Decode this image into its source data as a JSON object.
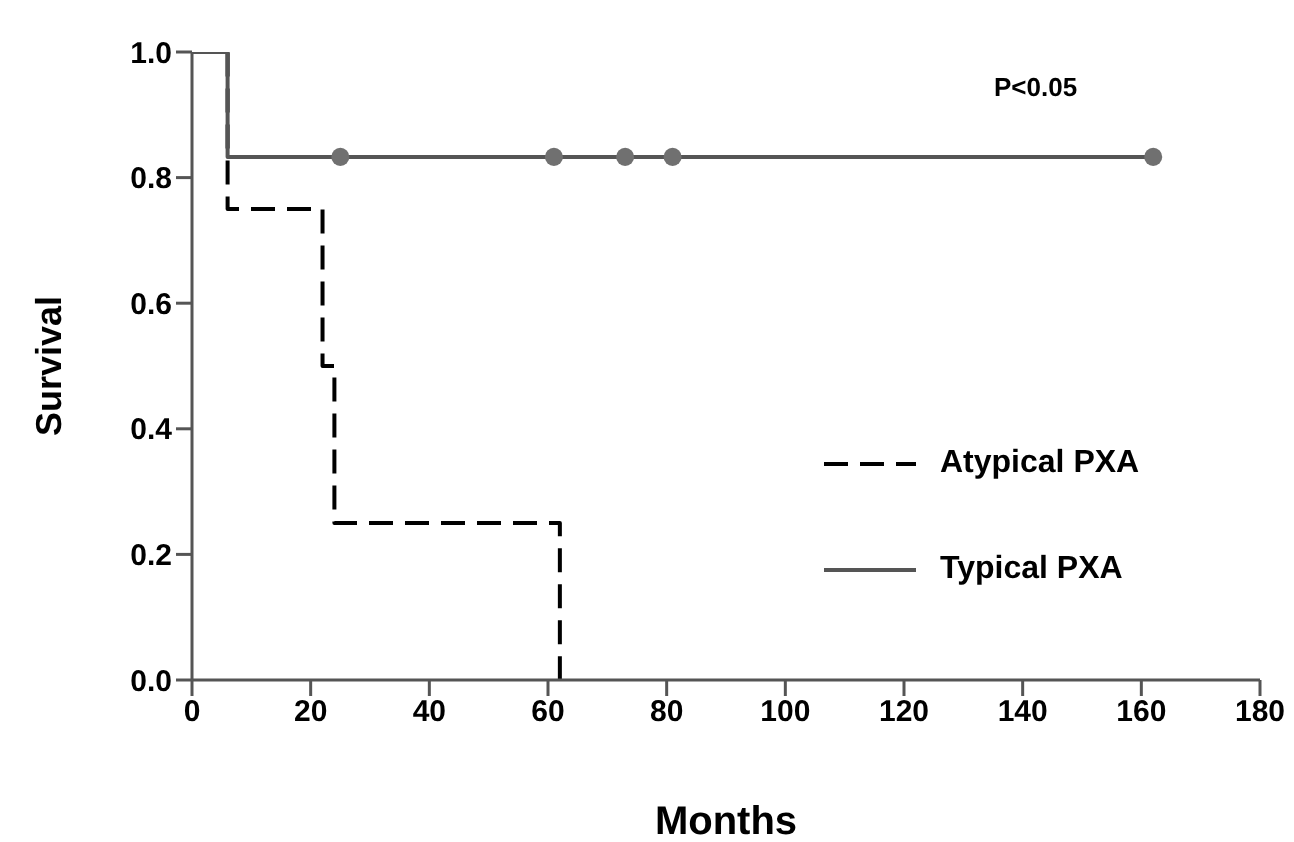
{
  "chart_data": {
    "type": "step",
    "xlabel": "Months",
    "ylabel": "Survival",
    "xlim": [
      0,
      180
    ],
    "xticks": [
      0,
      20,
      40,
      60,
      80,
      100,
      120,
      140,
      160,
      180
    ],
    "ylim": [
      0,
      1
    ],
    "yticks": [
      {
        "value": 0,
        "label": "0.0"
      },
      0.2,
      0.4,
      0.6,
      0.8,
      {
        "value": 1,
        "label": "1.0"
      }
    ],
    "legend": "right",
    "marker": "none",
    "annotations": [
      "P<0.05"
    ],
    "series": [
      {
        "name": "Atypical PXA",
        "color": "#000000",
        "line_style": "dashed",
        "x": [
          0,
          6,
          22,
          24,
          62
        ],
        "values": [
          1,
          0.75,
          0.5,
          0.25,
          0
        ]
      },
      {
        "name": "Typical PXA",
        "color": "#555555",
        "line_style": "solid",
        "x": [
          0,
          6,
          162
        ],
        "values": [
          1,
          0.833,
          0.833
        ]
      },
      {
        "type": "scatter",
        "color": "#707070",
        "marker": "circle",
        "x": [
          25,
          61,
          73,
          81,
          162
        ],
        "values": [
          0.833,
          0.833,
          0.833,
          0.833,
          0.833
        ]
      }
    ]
  }
}
